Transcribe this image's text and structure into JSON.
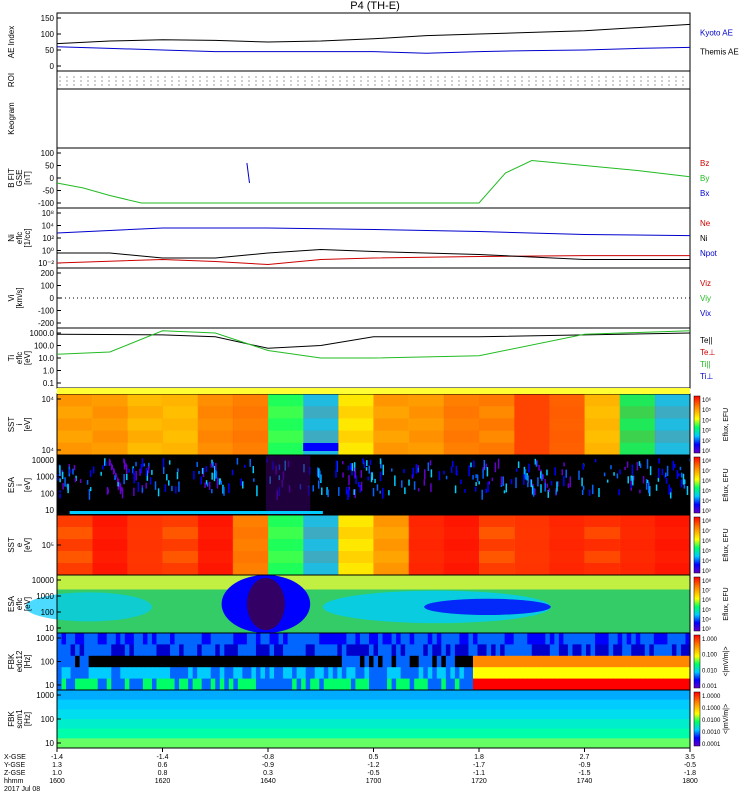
{
  "title": "P4 (TH-E)",
  "date_label": "2017 Jul 08",
  "time_rows": [
    {
      "label": "X-GSE",
      "values": [
        "-1.4",
        "-1.4",
        "-0.8",
        "0.5",
        "1.8",
        "2.7",
        "3.5"
      ]
    },
    {
      "label": "Y-GSE",
      "values": [
        "1.3",
        "0.6",
        "-0.9",
        "-1.2",
        "-1.7",
        "-0.9",
        "-0.5"
      ]
    },
    {
      "label": "Z-GSE",
      "values": [
        "1.0",
        "0.8",
        "0.3",
        "-0.5",
        "-1.1",
        "-1.5",
        "-1.8"
      ]
    },
    {
      "label": "hhmm",
      "values": [
        "1600",
        "1620",
        "1640",
        "1700",
        "1720",
        "1740",
        "1800"
      ]
    }
  ],
  "panels": [
    {
      "id": "ae",
      "ylabel": "AE Index",
      "yticks": [
        "150",
        "100",
        "50",
        "0"
      ],
      "legend": [
        "Kyoto AE",
        "Themis AE"
      ],
      "legend_colors": [
        "#0000cc",
        "#000000"
      ]
    },
    {
      "id": "roi",
      "ylabel": "ROI",
      "yticks": [],
      "legend": [],
      "legend_colors": []
    },
    {
      "id": "keogram",
      "ylabel": "Keogram",
      "yticks": [],
      "legend": [],
      "legend_colors": []
    },
    {
      "id": "bfit",
      "ylabel": "B FIT\nGSE\n[nT]",
      "yticks": [
        "100",
        "50",
        "0",
        "-50",
        "-100"
      ],
      "legend": [
        "Bz",
        "By",
        "Bx"
      ],
      "legend_colors": [
        "#cc0000",
        "#22bb22",
        "#0000cc"
      ]
    },
    {
      "id": "ni",
      "ylabel": "Ni\neflc\n[1/cc]",
      "yticks": [
        "10⁸",
        "10⁴",
        "10²",
        "10⁰",
        "10⁻²"
      ],
      "legend": [
        "Ne",
        "Ni",
        "Npot"
      ],
      "legend_colors": [
        "#cc0000",
        "#000000",
        "#0000cc"
      ]
    },
    {
      "id": "vi",
      "ylabel": "Vi\n[km/s]",
      "yticks": [
        "200",
        "100",
        "0",
        "-100",
        "-200"
      ],
      "legend": [
        "Viz",
        "Viy",
        "Vix"
      ],
      "legend_colors": [
        "#cc0000",
        "#22bb22",
        "#0000cc"
      ]
    },
    {
      "id": "ti",
      "ylabel": "Ti\neflc\n[eV]",
      "yticks": [
        "1000.0",
        "100.0",
        "10.0",
        "1.0",
        "0.1"
      ],
      "legend": [
        "Te||",
        "Te⊥",
        "Ti||",
        "Ti⊥"
      ],
      "legend_colors": [
        "#000000",
        "#cc0000",
        "#22bb22",
        "#0000cc"
      ]
    },
    {
      "id": "sst_i",
      "ylabel": "SST\ni\n[eV]",
      "yticks": [
        "10⁴",
        "10⁴"
      ],
      "legend": [],
      "legend_colors": []
    },
    {
      "id": "esa_i",
      "ylabel": "ESA\ni\n[eV]",
      "yticks": [
        "10000",
        "1000",
        "100",
        "10"
      ],
      "legend": [],
      "legend_colors": []
    },
    {
      "id": "sst_e",
      "ylabel": "SST\ne\n[eV]",
      "yticks": [
        "10⁵"
      ],
      "legend": [],
      "legend_colors": []
    },
    {
      "id": "esa_e",
      "ylabel": "ESA\neflc\n[eV]",
      "yticks": [
        "10000",
        "1000",
        "100",
        "10"
      ],
      "legend": [],
      "legend_colors": []
    },
    {
      "id": "fbk_e",
      "ylabel": "FBK\nedc12\n[Hz]",
      "yticks": [
        "1000",
        "100",
        "10"
      ],
      "legend": [],
      "legend_colors": []
    },
    {
      "id": "fbk_b",
      "ylabel": "FBK\nscm1\n[Hz]",
      "yticks": [
        "1000",
        "100",
        "10"
      ],
      "legend": [],
      "legend_colors": []
    }
  ],
  "colorbars": [
    {
      "panel": "sst_i",
      "ticks": [
        "10⁶",
        "10⁵",
        "10⁴",
        "10³",
        "10²",
        "10¹"
      ],
      "label": "Eflux, EFU"
    },
    {
      "panel": "esa_i",
      "ticks": [
        "10⁸",
        "10⁷",
        "10⁶",
        "10⁵",
        "10⁴",
        "10³"
      ],
      "label": "Eflux, EFU"
    },
    {
      "panel": "sst_e",
      "ticks": [
        "10⁸",
        "10⁷",
        "10⁶",
        "10⁵",
        "10⁴",
        "10³"
      ],
      "label": "Eflux, EFU"
    },
    {
      "panel": "esa_e",
      "ticks": [
        "10⁸",
        "10⁷",
        "10⁶",
        "10⁵",
        "10⁴",
        "10³"
      ],
      "label": "Eflux, EFU"
    },
    {
      "panel": "fbk_e",
      "ticks": [
        "1.000",
        "0.100",
        "0.010",
        "0.001"
      ],
      "label": "<|mV/m|>"
    },
    {
      "panel": "fbk_b",
      "ticks": [
        "1.0000",
        "0.1000",
        "0.0100",
        "0.0010",
        "0.0001"
      ],
      "label": "<|mV/m|>"
    }
  ],
  "chart_data": {
    "type": "line",
    "title": "P4 (TH-E)",
    "x_range": [
      "1600",
      "1800"
    ],
    "series": [
      {
        "name": "Kyoto AE",
        "panel": "ae",
        "color": "#0000cc",
        "x": [
          "1600",
          "1610",
          "1620",
          "1630",
          "1640",
          "1650",
          "1700",
          "1710",
          "1720",
          "1730",
          "1740",
          "1750",
          "1800"
        ],
        "y": [
          60,
          55,
          50,
          45,
          45,
          45,
          45,
          40,
          45,
          48,
          50,
          55,
          58
        ]
      },
      {
        "name": "Themis AE",
        "panel": "ae",
        "color": "#000000",
        "x": [
          "1600",
          "1610",
          "1620",
          "1630",
          "1640",
          "1650",
          "1700",
          "1710",
          "1720",
          "1730",
          "1740",
          "1750",
          "1800"
        ],
        "y": [
          70,
          78,
          82,
          80,
          75,
          78,
          85,
          95,
          100,
          105,
          110,
          120,
          130
        ]
      },
      {
        "name": "By",
        "panel": "bfit",
        "color": "#22bb22",
        "x": [
          "1600",
          "1605",
          "1610",
          "1616",
          "1720",
          "1725",
          "1730",
          "1740",
          "1750",
          "1800"
        ],
        "y": [
          -20,
          -40,
          -70,
          -100,
          -100,
          20,
          70,
          50,
          30,
          5
        ]
      },
      {
        "name": "Bx",
        "panel": "bfit",
        "color": "#0000cc",
        "x": [
          "1636",
          "1636.5"
        ],
        "y": [
          60,
          -20
        ]
      },
      {
        "name": "Ne",
        "panel": "ni",
        "color": "#cc0000",
        "x": [
          "1600",
          "1620",
          "1630",
          "1640",
          "1650",
          "1700",
          "1720",
          "1740",
          "1800"
        ],
        "y": [
          0.01,
          0.05,
          0.02,
          0.005,
          0.05,
          0.1,
          0.2,
          0.3,
          0.3
        ]
      },
      {
        "name": "Ni",
        "panel": "ni",
        "color": "#000000",
        "x": [
          "1600",
          "1610",
          "1620",
          "1630",
          "1640",
          "1650",
          "1700",
          "1720",
          "1740",
          "1800"
        ],
        "y": [
          1,
          1,
          0.1,
          0.1,
          1,
          5,
          2,
          0.5,
          0.05,
          0.05
        ]
      },
      {
        "name": "Npot",
        "panel": "ni",
        "color": "#0000cc",
        "x": [
          "1600",
          "1620",
          "1640",
          "1700",
          "1720",
          "1740",
          "1800"
        ],
        "y": [
          10000,
          100000,
          100000,
          50000,
          20000,
          5000,
          3000
        ]
      },
      {
        "name": "Te||",
        "panel": "ti",
        "color": "#000000",
        "x": [
          "1600",
          "1620",
          "1630",
          "1640",
          "1650",
          "1700",
          "1720",
          "1740",
          "1800"
        ],
        "y": [
          800,
          700,
          500,
          60,
          100,
          500,
          500,
          700,
          1000
        ]
      },
      {
        "name": "Ti||",
        "panel": "ti",
        "color": "#22bb22",
        "x": [
          "1600",
          "1610",
          "1620",
          "1630",
          "1640",
          "1650",
          "1700",
          "1720",
          "1740",
          "1800"
        ],
        "y": [
          20,
          30,
          1500,
          1000,
          40,
          10,
          10,
          15,
          800,
          1500
        ]
      }
    ]
  }
}
